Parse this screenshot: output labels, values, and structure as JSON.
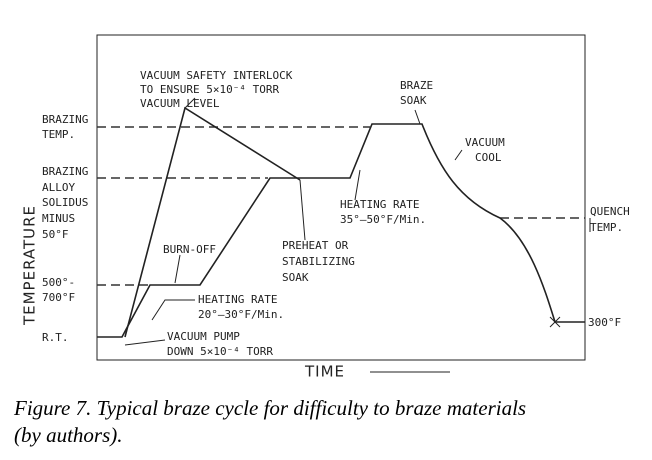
{
  "y_axis_label": "TEMPERATURE",
  "x_axis_label": "TIME",
  "levels": {
    "brazing_temp": [
      "BRAZING",
      "TEMP."
    ],
    "solidus": [
      "BRAZING",
      "ALLOY",
      "SOLIDUS",
      "MINUS",
      "50°F"
    ],
    "preheat": [
      "500°-",
      "700°F"
    ],
    "room": "R.T.",
    "quench": [
      "QUENCH",
      "TEMP."
    ],
    "final": "300°F"
  },
  "annotations": {
    "interlock": [
      "VACUUM SAFETY INTERLOCK",
      "TO ENSURE 5×10⁻⁴ TORR",
      "VACUUM LEVEL"
    ],
    "braze_soak": [
      "BRAZE",
      "SOAK"
    ],
    "vacuum_cool": [
      "VACUUM",
      "COOL"
    ],
    "heating_rate_high": [
      "HEATING RATE",
      "35°–50°F/Min."
    ],
    "preheat_soak": [
      "PREHEAT OR",
      "STABILIZING",
      "SOAK"
    ],
    "burn_off": "BURN-OFF",
    "heating_rate_low": [
      "HEATING RATE",
      "20°–30°F/Min."
    ],
    "pump_down": [
      "VACUUM PUMP",
      "DOWN 5×10⁻⁴ TORR"
    ]
  },
  "caption": [
    "Figure 7. Typical braze cycle for difficulty to braze materials",
    "(by authors)."
  ]
}
